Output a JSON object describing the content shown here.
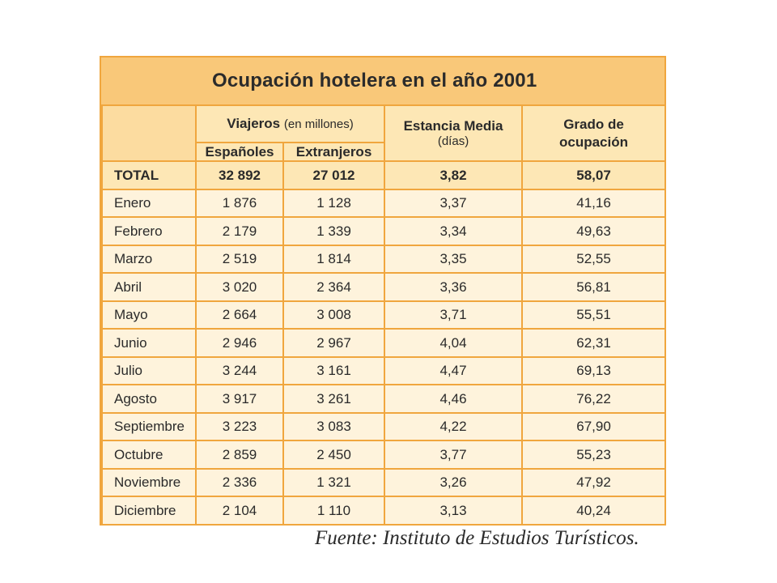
{
  "title": "Ocupación hotelera en el año 2001",
  "headers": {
    "viajeros": "Viajeros",
    "viajeros_unit": "(en millones)",
    "espanoles": "Españoles",
    "extranjeros": "Extranjeros",
    "estancia": "Estancia Media",
    "estancia_unit": "(días)",
    "grado": "Grado de ocupación"
  },
  "total": {
    "label": "TOTAL",
    "espanoles": "32 892",
    "extranjeros": "27 012",
    "estancia": "3,82",
    "grado": "58,07"
  },
  "rows": [
    {
      "month": "Enero",
      "espanoles": "1 876",
      "extranjeros": "1 128",
      "estancia": "3,37",
      "grado": "41,16"
    },
    {
      "month": "Febrero",
      "espanoles": "2 179",
      "extranjeros": "1 339",
      "estancia": "3,34",
      "grado": "49,63"
    },
    {
      "month": "Marzo",
      "espanoles": "2 519",
      "extranjeros": "1 814",
      "estancia": "3,35",
      "grado": "52,55"
    },
    {
      "month": "Abril",
      "espanoles": "3 020",
      "extranjeros": "2 364",
      "estancia": "3,36",
      "grado": "56,81"
    },
    {
      "month": "Mayo",
      "espanoles": "2 664",
      "extranjeros": "3 008",
      "estancia": "3,71",
      "grado": "55,51"
    },
    {
      "month": "Junio",
      "espanoles": "2 946",
      "extranjeros": "2 967",
      "estancia": "4,04",
      "grado": "62,31"
    },
    {
      "month": "Julio",
      "espanoles": "3 244",
      "extranjeros": "3 161",
      "estancia": "4,47",
      "grado": "69,13"
    },
    {
      "month": "Agosto",
      "espanoles": "3 917",
      "extranjeros": "3 261",
      "estancia": "4,46",
      "grado": "76,22"
    },
    {
      "month": "Septiembre",
      "espanoles": "3 223",
      "extranjeros": "3 083",
      "estancia": "4,22",
      "grado": "67,90"
    },
    {
      "month": "Octubre",
      "espanoles": "2 859",
      "extranjeros": "2 450",
      "estancia": "3,77",
      "grado": "55,23"
    },
    {
      "month": "Noviembre",
      "espanoles": "2 336",
      "extranjeros": "1 321",
      "estancia": "3,26",
      "grado": "47,92"
    },
    {
      "month": "Diciembre",
      "espanoles": "2 104",
      "extranjeros": "1 110",
      "estancia": "3,13",
      "grado": "40,24"
    }
  ],
  "source": "Fuente: Instituto de Estudios Turísticos.",
  "colors": {
    "frame": "#f9c879",
    "border": "#f0a63e",
    "header_cell": "#fde7b5",
    "body_cell": "#fef3dc"
  }
}
